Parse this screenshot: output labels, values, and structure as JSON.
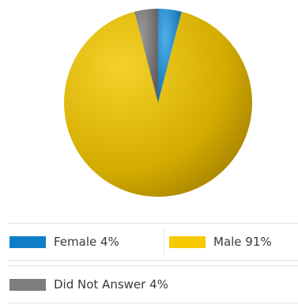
{
  "chart_data": {
    "type": "pie",
    "title": "",
    "slices": [
      {
        "label": "Female",
        "value": 4,
        "color": "#1b86c6"
      },
      {
        "label": "Male",
        "value": 91,
        "color": "#d8b000"
      },
      {
        "label": "Did Not Answer",
        "value": 4,
        "color": "#7a7a7a"
      }
    ],
    "legend": {
      "placement": "bottom",
      "items": [
        {
          "text": "Female 4%",
          "color": "#0f7ec7"
        },
        {
          "text": "Male 91%",
          "color": "#f7c900"
        },
        {
          "text": "Did Not Answer 4%",
          "color": "#7d7d7d"
        }
      ]
    }
  }
}
